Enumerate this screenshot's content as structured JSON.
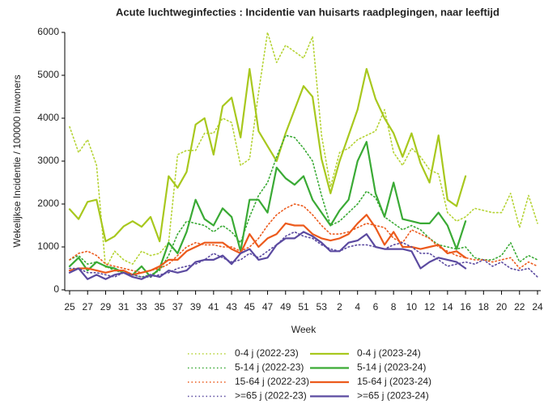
{
  "chart_data": {
    "type": "line",
    "title": "Acute luchtweginfecties : Incidentie van huisarts raadplegingen, naar leeftijd",
    "x_label": "Week",
    "y_label": "Wekelijkse Incidentie / 100000 inwoners",
    "ylim": [
      0,
      6000
    ],
    "yticks": [
      0,
      1000,
      2000,
      3000,
      4000,
      5000,
      6000
    ],
    "grid": false,
    "legend_position": "bottom",
    "categories": [
      "25",
      null,
      "27",
      null,
      "29",
      null,
      "31",
      null,
      "33",
      null,
      "35",
      null,
      "37",
      null,
      "39",
      null,
      "41",
      null,
      "43",
      null,
      "45",
      null,
      "47",
      null,
      "49",
      null,
      "51",
      null,
      "53",
      null,
      "2",
      null,
      "4",
      null,
      "6",
      null,
      "8",
      null,
      "10",
      null,
      "12",
      null,
      "14",
      null,
      "16",
      null,
      "18",
      null,
      "20",
      null,
      "22",
      null,
      "24"
    ],
    "series": [
      {
        "name": "0-4 j (2022-23)",
        "color": "#b5d334",
        "style": "dotted",
        "values": [
          3800,
          3200,
          3500,
          2900,
          500,
          900,
          700,
          600,
          900,
          800,
          850,
          1100,
          3150,
          3250,
          3250,
          3650,
          3650,
          4000,
          3900,
          2900,
          3050,
          4600,
          6000,
          5300,
          5700,
          5550,
          5400,
          5900,
          3600,
          2400,
          3200,
          3300,
          3500,
          3600,
          3700,
          4200,
          3200,
          2900,
          3300,
          3100,
          2800,
          2700,
          1800,
          1600,
          1700,
          1900,
          1850,
          1800,
          1800,
          2250,
          1450,
          2200,
          1550
        ]
      },
      {
        "name": "0-4 j (2023-24)",
        "color": "#a8c81e",
        "style": "solid",
        "values": [
          1880,
          1650,
          2050,
          2100,
          1130,
          1250,
          1480,
          1600,
          1470,
          1700,
          1130,
          2650,
          2380,
          2750,
          3850,
          4000,
          3150,
          4280,
          4480,
          3550,
          5150,
          3700,
          3350,
          3000,
          3650,
          4200,
          4750,
          4500,
          3050,
          2250,
          3000,
          3600,
          4200,
          5150,
          4450,
          4000,
          3650,
          3100,
          3650,
          2950,
          2500,
          3600,
          2100,
          1950,
          2650,
          null,
          null,
          null,
          null,
          null,
          null,
          null,
          null
        ]
      },
      {
        "name": "5-14 j (2022-23)",
        "color": "#3aaa35",
        "style": "dotted",
        "values": [
          700,
          800,
          600,
          650,
          550,
          450,
          400,
          350,
          300,
          350,
          450,
          800,
          1300,
          1600,
          1550,
          1500,
          1350,
          1500,
          1350,
          1100,
          1700,
          2200,
          2500,
          3100,
          3600,
          3550,
          3300,
          3000,
          2200,
          1500,
          1600,
          1800,
          2000,
          2300,
          2150,
          1700,
          1550,
          1400,
          1500,
          1400,
          1200,
          1050,
          1000,
          950,
          1000,
          750,
          700,
          700,
          800,
          1100,
          650,
          800,
          700
        ]
      },
      {
        "name": "5-14 j (2023-24)",
        "color": "#3aaa35",
        "style": "solid",
        "values": [
          550,
          750,
          450,
          650,
          550,
          500,
          400,
          350,
          550,
          300,
          500,
          1100,
          850,
          1350,
          2100,
          1650,
          1500,
          1900,
          1700,
          900,
          2100,
          2100,
          1800,
          2850,
          2600,
          2450,
          2650,
          2100,
          1800,
          1500,
          1850,
          2100,
          3000,
          3450,
          2250,
          1700,
          2500,
          1650,
          1600,
          1550,
          1550,
          1800,
          1500,
          950,
          1600,
          null,
          null,
          null,
          null,
          null,
          null,
          null,
          null
        ]
      },
      {
        "name": "15-64 j (2022-23)",
        "color": "#ec5a1c",
        "style": "dotted",
        "values": [
          700,
          850,
          900,
          800,
          600,
          550,
          500,
          450,
          400,
          450,
          500,
          600,
          800,
          1000,
          1100,
          1050,
          1050,
          1000,
          1000,
          900,
          1000,
          1200,
          1500,
          1750,
          1900,
          2000,
          1950,
          1750,
          1500,
          1300,
          1300,
          1350,
          1450,
          1550,
          1500,
          1450,
          1200,
          1100,
          1400,
          1300,
          1200,
          1000,
          900,
          800,
          750,
          700,
          700,
          650,
          700,
          750,
          500,
          650,
          550
        ]
      },
      {
        "name": "15-64 j (2023-24)",
        "color": "#ec5a1c",
        "style": "solid",
        "values": [
          450,
          500,
          500,
          450,
          400,
          450,
          450,
          350,
          400,
          450,
          550,
          700,
          700,
          900,
          1000,
          1100,
          1100,
          1100,
          950,
          850,
          1300,
          1000,
          1200,
          1300,
          1550,
          1500,
          1500,
          1300,
          1200,
          1150,
          1200,
          1300,
          1550,
          1750,
          1450,
          1050,
          1350,
          1000,
          1000,
          950,
          1000,
          1050,
          850,
          900,
          750,
          null,
          null,
          null,
          null,
          null,
          null,
          null,
          null
        ]
      },
      {
        "name": ">=65 j (2022-23)",
        "color": "#5b4aa0",
        "style": "dotted",
        "values": [
          500,
          500,
          400,
          400,
          350,
          300,
          400,
          350,
          300,
          300,
          350,
          400,
          500,
          550,
          600,
          700,
          850,
          750,
          650,
          700,
          850,
          750,
          900,
          1050,
          1250,
          1350,
          1250,
          1200,
          1050,
          950,
          900,
          1000,
          1050,
          1050,
          1000,
          950,
          1050,
          1100,
          1000,
          850,
          850,
          700,
          550,
          600,
          650,
          600,
          700,
          550,
          650,
          500,
          450,
          500,
          300
        ]
      },
      {
        "name": ">=65 j (2023-24)",
        "color": "#5b4aa0",
        "style": "solid",
        "values": [
          400,
          500,
          250,
          350,
          250,
          350,
          400,
          300,
          250,
          350,
          300,
          450,
          400,
          450,
          650,
          700,
          700,
          800,
          600,
          850,
          950,
          700,
          750,
          1050,
          1200,
          1200,
          1350,
          1250,
          1100,
          900,
          900,
          1100,
          1150,
          1300,
          1000,
          950,
          950,
          950,
          900,
          500,
          650,
          750,
          700,
          650,
          500,
          null,
          null,
          null,
          null,
          null,
          null,
          null,
          null
        ]
      }
    ]
  }
}
